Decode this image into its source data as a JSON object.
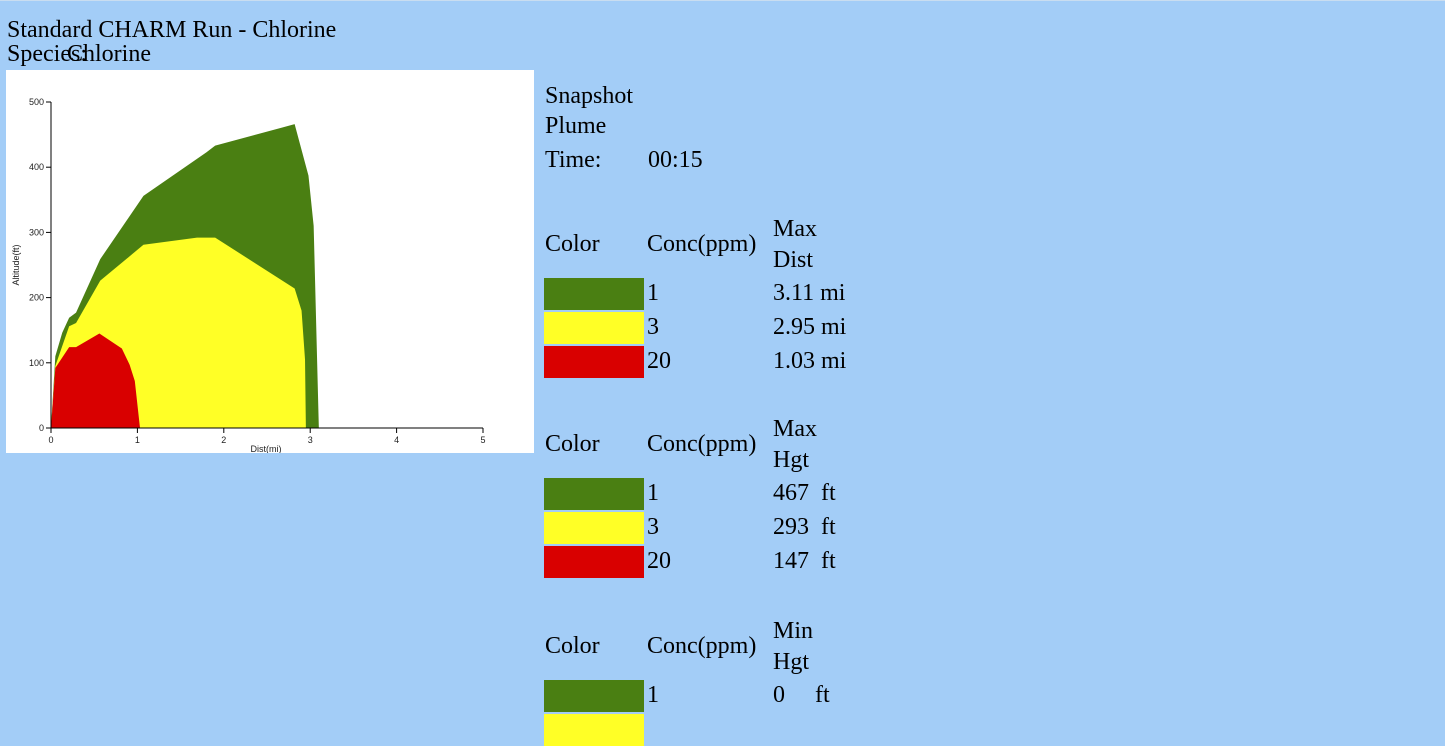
{
  "header": {
    "title": "Standard CHARM Run - Chlorine",
    "species_label": "Species:",
    "species_value": "Chlorine"
  },
  "snapshot": {
    "line1": "Snapshot",
    "line2": "Plume",
    "time_label": "Time:",
    "time_value": "00:15"
  },
  "colors": {
    "green": "#4a7f12",
    "yellow": "#ffff26",
    "red": "#d90000",
    "background": "#a3cdf7"
  },
  "tables": [
    {
      "col_color": "Color",
      "col_conc": "Conc(ppm)",
      "col_value_1": "Max",
      "col_value_2": "Dist",
      "rows": [
        {
          "color": "#4a7f12",
          "conc": "1",
          "value": "3.11 mi"
        },
        {
          "color": "#ffff26",
          "conc": "3",
          "value": "2.95 mi"
        },
        {
          "color": "#d90000",
          "conc": "20",
          "value": "1.03 mi"
        }
      ]
    },
    {
      "col_color": "Color",
      "col_conc": "Conc(ppm)",
      "col_value_1": "Max",
      "col_value_2": "Hgt",
      "rows": [
        {
          "color": "#4a7f12",
          "conc": "1",
          "value": "467  ft"
        },
        {
          "color": "#ffff26",
          "conc": "3",
          "value": "293  ft"
        },
        {
          "color": "#d90000",
          "conc": "20",
          "value": "147  ft"
        }
      ]
    },
    {
      "col_color": "Color",
      "col_conc": "Conc(ppm)",
      "col_value_1": "Min",
      "col_value_2": "Hgt",
      "rows": [
        {
          "color": "#4a7f12",
          "conc": "1",
          "value": "0     ft"
        },
        {
          "color": "#ffff26"
        }
      ]
    }
  ],
  "chart_data": {
    "type": "area",
    "xlabel": "Dist(mi)",
    "ylabel": "Altitude(ft)",
    "xlim": [
      0,
      5
    ],
    "ylim": [
      0,
      500
    ],
    "xticks": [
      "0",
      "1",
      "2",
      "3",
      "4",
      "5"
    ],
    "yticks": [
      "0",
      "100",
      "200",
      "300",
      "400",
      "500"
    ],
    "grid": false,
    "series": [
      {
        "color": "#4a7f12",
        "points": [
          [
            0,
            0
          ],
          [
            0.05,
            110
          ],
          [
            0.13,
            146
          ],
          [
            0.21,
            169
          ],
          [
            0.29,
            177
          ],
          [
            0.57,
            259
          ],
          [
            1.07,
            356
          ],
          [
            1.8,
            423
          ],
          [
            1.9,
            433
          ],
          [
            2.82,
            466
          ],
          [
            2.98,
            387
          ],
          [
            3.04,
            310
          ],
          [
            3.1,
            0
          ]
        ]
      },
      {
        "color": "#ffff26",
        "points": [
          [
            0,
            0
          ],
          [
            0.05,
            95
          ],
          [
            0.21,
            156
          ],
          [
            0.29,
            161
          ],
          [
            0.57,
            226
          ],
          [
            1.07,
            281
          ],
          [
            1.69,
            292
          ],
          [
            1.9,
            292
          ],
          [
            2.82,
            214
          ],
          [
            2.9,
            180
          ],
          [
            2.94,
            105
          ],
          [
            2.95,
            0
          ]
        ]
      },
      {
        "color": "#d90000",
        "points": [
          [
            0,
            0
          ],
          [
            0.05,
            92
          ],
          [
            0.21,
            124
          ],
          [
            0.29,
            124
          ],
          [
            0.56,
            145
          ],
          [
            0.82,
            122
          ],
          [
            0.91,
            97
          ],
          [
            0.97,
            72
          ],
          [
            1.03,
            0
          ]
        ]
      }
    ]
  }
}
